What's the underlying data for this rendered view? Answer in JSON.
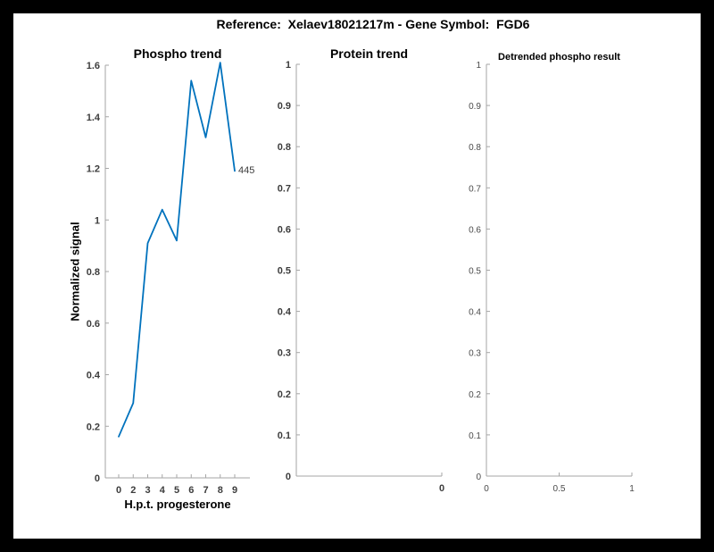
{
  "header": {
    "title": "Reference:  Xelaev18021217m - Gene Symbol:  FGD6"
  },
  "colors": {
    "line": "#0072BD",
    "axis": "#A6A6A6",
    "tick_text": "#3C3C3C",
    "title_text": "#000000",
    "figure_bg": "#FFFFFF",
    "border_bg": "#000000"
  },
  "chart_data": [
    {
      "type": "line",
      "title": "Phospho trend",
      "xlabel": "H.p.t. progesterone",
      "ylabel": "Normalized signal",
      "categories": [
        "0",
        "2",
        "3",
        "4",
        "5",
        "6",
        "7",
        "8",
        "9"
      ],
      "values": [
        0.16,
        0.29,
        0.91,
        1.04,
        0.92,
        1.54,
        1.32,
        1.61,
        1.19
      ],
      "ylim": [
        0,
        1.6
      ],
      "yticks": [
        "0",
        "0.2",
        "0.4",
        "0.6",
        "0.8",
        "1",
        "1.2",
        "1.4",
        "1.6"
      ],
      "end_label": "445",
      "grid": false,
      "legend": "none"
    },
    {
      "type": "line",
      "title": "Protein trend",
      "xlabel": "",
      "ylabel": "",
      "categories": [],
      "values": [],
      "ylim": [
        0,
        1
      ],
      "yticks": [
        "0",
        "0.1",
        "0.2",
        "0.3",
        "0.4",
        "0.5",
        "0.6",
        "0.7",
        "0.8",
        "0.9",
        "1"
      ],
      "xticks": [
        {
          "label": "0",
          "frac": 1
        }
      ],
      "grid": false,
      "legend": "none"
    },
    {
      "type": "line",
      "title": "Detrended phospho result",
      "xlabel": "",
      "ylabel": "",
      "categories": [],
      "values": [],
      "ylim": [
        0,
        1
      ],
      "yticks": [
        "0",
        "0.1",
        "0.2",
        "0.3",
        "0.4",
        "0.5",
        "0.6",
        "0.7",
        "0.8",
        "0.9",
        "1"
      ],
      "xticks": [
        {
          "label": "0",
          "frac": 0
        },
        {
          "label": "0.5",
          "frac": 0.5
        },
        {
          "label": "1",
          "frac": 1
        }
      ],
      "grid": false,
      "legend": "none"
    }
  ]
}
